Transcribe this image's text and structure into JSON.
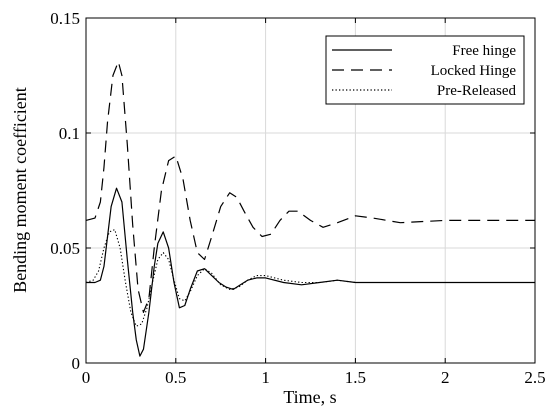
{
  "chart_data": {
    "type": "line",
    "xlabel": "Time, s",
    "ylabel": "Bending moment coefficient",
    "xlim": [
      0,
      2.5
    ],
    "ylim": [
      0,
      0.15
    ],
    "xticks": [
      0,
      0.5,
      1,
      1.5,
      2,
      2.5
    ],
    "xtick_labels": [
      "0",
      "0.5",
      "1",
      "1.5",
      "2",
      "2.5"
    ],
    "yticks": [
      0,
      0.05,
      0.1,
      0.15
    ],
    "ytick_labels": [
      "0",
      "0.05",
      "0.1",
      "0.15"
    ],
    "grid": true,
    "legend": "top-right",
    "series": [
      {
        "name": "Free hinge",
        "style": "solid",
        "x": [
          0,
          0.05,
          0.08,
          0.1,
          0.12,
          0.14,
          0.17,
          0.2,
          0.23,
          0.26,
          0.28,
          0.3,
          0.32,
          0.35,
          0.38,
          0.4,
          0.43,
          0.46,
          0.49,
          0.52,
          0.55,
          0.58,
          0.62,
          0.66,
          0.7,
          0.74,
          0.78,
          0.82,
          0.86,
          0.9,
          0.95,
          1.0,
          1.1,
          1.2,
          1.3,
          1.4,
          1.5,
          1.7,
          2.0,
          2.3,
          2.5
        ],
        "values": [
          0.035,
          0.035,
          0.036,
          0.042,
          0.055,
          0.068,
          0.076,
          0.07,
          0.045,
          0.022,
          0.01,
          0.003,
          0.006,
          0.022,
          0.042,
          0.052,
          0.057,
          0.05,
          0.035,
          0.024,
          0.025,
          0.032,
          0.04,
          0.041,
          0.038,
          0.035,
          0.033,
          0.032,
          0.034,
          0.036,
          0.037,
          0.037,
          0.035,
          0.034,
          0.035,
          0.036,
          0.035,
          0.035,
          0.035,
          0.035,
          0.035
        ]
      },
      {
        "name": "Locked Hinge",
        "style": "dashed",
        "x": [
          0,
          0.05,
          0.08,
          0.1,
          0.12,
          0.15,
          0.18,
          0.2,
          0.23,
          0.26,
          0.29,
          0.32,
          0.35,
          0.38,
          0.42,
          0.46,
          0.5,
          0.54,
          0.58,
          0.62,
          0.66,
          0.7,
          0.75,
          0.8,
          0.84,
          0.88,
          0.93,
          0.98,
          1.03,
          1.08,
          1.13,
          1.18,
          1.25,
          1.32,
          1.4,
          1.5,
          1.6,
          1.75,
          2.0,
          2.25,
          2.5
        ],
        "values": [
          0.062,
          0.063,
          0.07,
          0.085,
          0.105,
          0.125,
          0.131,
          0.125,
          0.095,
          0.06,
          0.032,
          0.022,
          0.028,
          0.05,
          0.075,
          0.088,
          0.09,
          0.08,
          0.062,
          0.048,
          0.045,
          0.055,
          0.068,
          0.074,
          0.072,
          0.066,
          0.059,
          0.055,
          0.056,
          0.062,
          0.066,
          0.066,
          0.062,
          0.059,
          0.061,
          0.064,
          0.063,
          0.061,
          0.062,
          0.062,
          0.062
        ]
      },
      {
        "name": "Pre-Released",
        "style": "dotted",
        "x": [
          0,
          0.04,
          0.07,
          0.1,
          0.13,
          0.16,
          0.19,
          0.22,
          0.25,
          0.28,
          0.31,
          0.34,
          0.37,
          0.4,
          0.43,
          0.46,
          0.49,
          0.52,
          0.55,
          0.58,
          0.62,
          0.66,
          0.7,
          0.75,
          0.8,
          0.85,
          0.9,
          0.95,
          1.0,
          1.1,
          1.2,
          1.3,
          1.4,
          1.5,
          1.7,
          2.0,
          2.3,
          2.5
        ],
        "values": [
          0.035,
          0.036,
          0.04,
          0.05,
          0.057,
          0.058,
          0.05,
          0.035,
          0.022,
          0.016,
          0.017,
          0.024,
          0.035,
          0.045,
          0.048,
          0.045,
          0.036,
          0.028,
          0.027,
          0.031,
          0.038,
          0.041,
          0.039,
          0.034,
          0.032,
          0.033,
          0.036,
          0.038,
          0.038,
          0.036,
          0.035,
          0.035,
          0.036,
          0.035,
          0.035,
          0.035,
          0.035,
          0.035
        ]
      }
    ]
  }
}
